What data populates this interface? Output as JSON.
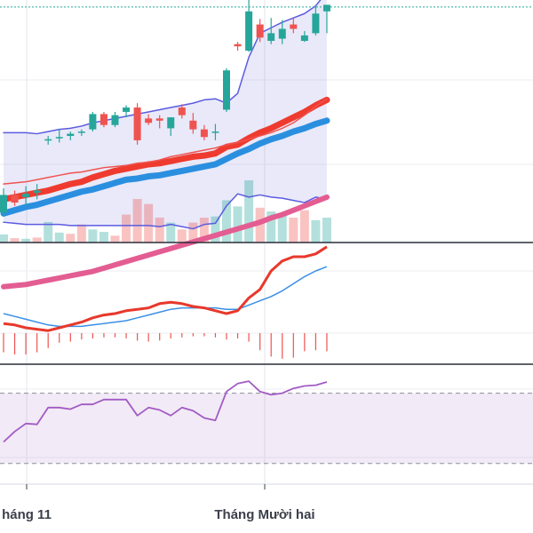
{
  "chart_data": {
    "type": "candlestick",
    "x_tick_labels": [
      {
        "label": "háng 11",
        "at": 2
      },
      {
        "label": "Tháng Mười hai",
        "at": 21
      }
    ],
    "price_pane": {
      "candles": [
        {
          "o": 256,
          "h": 278,
          "l": 252,
          "c": 272
        },
        {
          "o": 272,
          "h": 276,
          "l": 262,
          "c": 265
        },
        {
          "o": 270,
          "h": 280,
          "l": 262,
          "c": 273
        },
        {
          "o": 274,
          "h": 282,
          "l": 268,
          "c": 276
        },
        {
          "o": 322,
          "h": 326,
          "l": 318,
          "c": 323
        },
        {
          "o": 324,
          "h": 332,
          "l": 320,
          "c": 325
        },
        {
          "o": 326,
          "h": 330,
          "l": 322,
          "c": 328
        },
        {
          "o": 329,
          "h": 332,
          "l": 326,
          "c": 330
        },
        {
          "o": 332,
          "h": 348,
          "l": 330,
          "c": 346
        },
        {
          "o": 346,
          "h": 348,
          "l": 334,
          "c": 336
        },
        {
          "o": 336,
          "h": 348,
          "l": 334,
          "c": 345
        },
        {
          "o": 348,
          "h": 354,
          "l": 343,
          "c": 352
        },
        {
          "o": 352,
          "h": 356,
          "l": 318,
          "c": 322
        },
        {
          "o": 342,
          "h": 346,
          "l": 336,
          "c": 338
        },
        {
          "o": 342,
          "h": 345,
          "l": 333,
          "c": 340
        },
        {
          "o": 333,
          "h": 343,
          "l": 326,
          "c": 343
        },
        {
          "o": 352,
          "h": 355,
          "l": 342,
          "c": 345
        },
        {
          "o": 340,
          "h": 347,
          "l": 328,
          "c": 332
        },
        {
          "o": 332,
          "h": 336,
          "l": 322,
          "c": 325
        },
        {
          "o": 330,
          "h": 337,
          "l": 322,
          "c": 330
        },
        {
          "o": 350,
          "h": 388,
          "l": 348,
          "c": 386
        },
        {
          "o": 410,
          "h": 412,
          "l": 404,
          "c": 408
        },
        {
          "o": 404,
          "h": 460,
          "l": 403,
          "c": 440
        },
        {
          "o": 428,
          "h": 433,
          "l": 412,
          "c": 416
        },
        {
          "o": 413,
          "h": 434,
          "l": 410,
          "c": 420
        },
        {
          "o": 415,
          "h": 432,
          "l": 410,
          "c": 424
        },
        {
          "o": 428,
          "h": 434,
          "l": 420,
          "c": 424
        },
        {
          "o": 413,
          "h": 422,
          "l": 412,
          "c": 418
        },
        {
          "o": 420,
          "h": 446,
          "l": 418,
          "c": 438
        },
        {
          "o": 440,
          "h": 446,
          "l": 420,
          "c": 446
        }
      ],
      "last_price_line": 444,
      "bollinger_upper": [
        329,
        329,
        329,
        328,
        330,
        332,
        333,
        335,
        338,
        340,
        342,
        344,
        346,
        348,
        350,
        352,
        354,
        356,
        359,
        360,
        356,
        365,
        398,
        420,
        425,
        430,
        434,
        438,
        445,
        458
      ],
      "bollinger_lower": [
        247,
        246,
        245,
        245,
        245,
        245,
        244,
        244,
        244,
        244,
        244,
        244,
        244,
        244,
        243,
        245,
        243,
        241,
        245,
        246,
        262,
        273,
        270,
        272,
        270,
        269,
        267,
        265,
        270,
        268
      ],
      "bollinger_mid": [
        255,
        258,
        261,
        263,
        266,
        269,
        272,
        275,
        277,
        280,
        283,
        286,
        287,
        289,
        290,
        292,
        294,
        296,
        298,
        300,
        305,
        310,
        314,
        319,
        323,
        326,
        330,
        333,
        337,
        340
      ],
      "ma_short": [
        282,
        283,
        284,
        286,
        288,
        290,
        292,
        293,
        295,
        297,
        298,
        299,
        301,
        302,
        304,
        307,
        309,
        311,
        313,
        315,
        318,
        320,
        323,
        326,
        329,
        333,
        338,
        345,
        353,
        360
      ],
      "ma_thick_red": [
        268,
        270,
        272,
        274,
        276,
        279,
        282,
        284,
        288,
        291,
        294,
        296,
        298,
        300,
        301,
        303,
        305,
        307,
        308,
        310,
        316,
        318,
        324,
        329,
        333,
        338,
        343,
        348,
        354,
        359
      ],
      "ma_long_pink": [
        188,
        189,
        190,
        192,
        194,
        196,
        198,
        200,
        202,
        205,
        208,
        211,
        214,
        217,
        220,
        223,
        226,
        229,
        232,
        235,
        238,
        241,
        244,
        247,
        251,
        254,
        258,
        262,
        266,
        270
      ],
      "volume": [
        {
          "v": 0.13,
          "up": true
        },
        {
          "v": 0.07,
          "up": false
        },
        {
          "v": 0.06,
          "up": true
        },
        {
          "v": 0.08,
          "up": false
        },
        {
          "v": 0.33,
          "up": true
        },
        {
          "v": 0.16,
          "up": true
        },
        {
          "v": 0.14,
          "up": false
        },
        {
          "v": 0.29,
          "up": false
        },
        {
          "v": 0.21,
          "up": true
        },
        {
          "v": 0.17,
          "up": true
        },
        {
          "v": 0.11,
          "up": false
        },
        {
          "v": 0.45,
          "up": false
        },
        {
          "v": 0.7,
          "up": false
        },
        {
          "v": 0.62,
          "up": false
        },
        {
          "v": 0.4,
          "up": false
        },
        {
          "v": 0.32,
          "up": true
        },
        {
          "v": 0.21,
          "up": false
        },
        {
          "v": 0.32,
          "up": false
        },
        {
          "v": 0.4,
          "up": false
        },
        {
          "v": 0.42,
          "up": true
        },
        {
          "v": 0.68,
          "up": true
        },
        {
          "v": 0.58,
          "up": true
        },
        {
          "v": 1.0,
          "up": true
        },
        {
          "v": 0.56,
          "up": false
        },
        {
          "v": 0.5,
          "up": true
        },
        {
          "v": 0.44,
          "up": true
        },
        {
          "v": 0.4,
          "up": false
        },
        {
          "v": 0.52,
          "up": false
        },
        {
          "v": 0.36,
          "up": true
        },
        {
          "v": 0.4,
          "up": true
        }
      ]
    },
    "macd_pane": {
      "macd": [
        -12,
        -13,
        -15,
        -16,
        -17,
        -15,
        -13,
        -11,
        -8,
        -6,
        -5,
        -3,
        -2,
        -1,
        2,
        3,
        2,
        0,
        -1,
        -3,
        -5,
        -3,
        6,
        12,
        25,
        32,
        35,
        35,
        37,
        42
      ],
      "signal": [
        -5,
        -7,
        -9,
        -11,
        -13,
        -14,
        -14,
        -14,
        -13,
        -12,
        -11,
        -10,
        -8,
        -6,
        -4,
        -2,
        -1,
        -1,
        -1,
        -1,
        -2,
        -2,
        1,
        4,
        7,
        11,
        16,
        21,
        25,
        28
      ],
      "histogram": [
        -18,
        -20,
        -20,
        -18,
        -14,
        -9,
        -8,
        -6,
        -5,
        -4,
        -4,
        -5,
        -7,
        -8,
        -7,
        -5,
        -4,
        -3,
        -3,
        -4,
        -6,
        -5,
        -8,
        -16,
        -22,
        -24,
        -23,
        -17,
        -16,
        -17
      ]
    },
    "rsi_pane": {
      "rsi": [
        25,
        38,
        48,
        47,
        68,
        68,
        66,
        72,
        72,
        78,
        78,
        78,
        58,
        68,
        65,
        58,
        68,
        64,
        55,
        52,
        88,
        98,
        101,
        88,
        84,
        86,
        92,
        95,
        96,
        100
      ],
      "upper_band": 86,
      "lower_band": -2
    }
  }
}
